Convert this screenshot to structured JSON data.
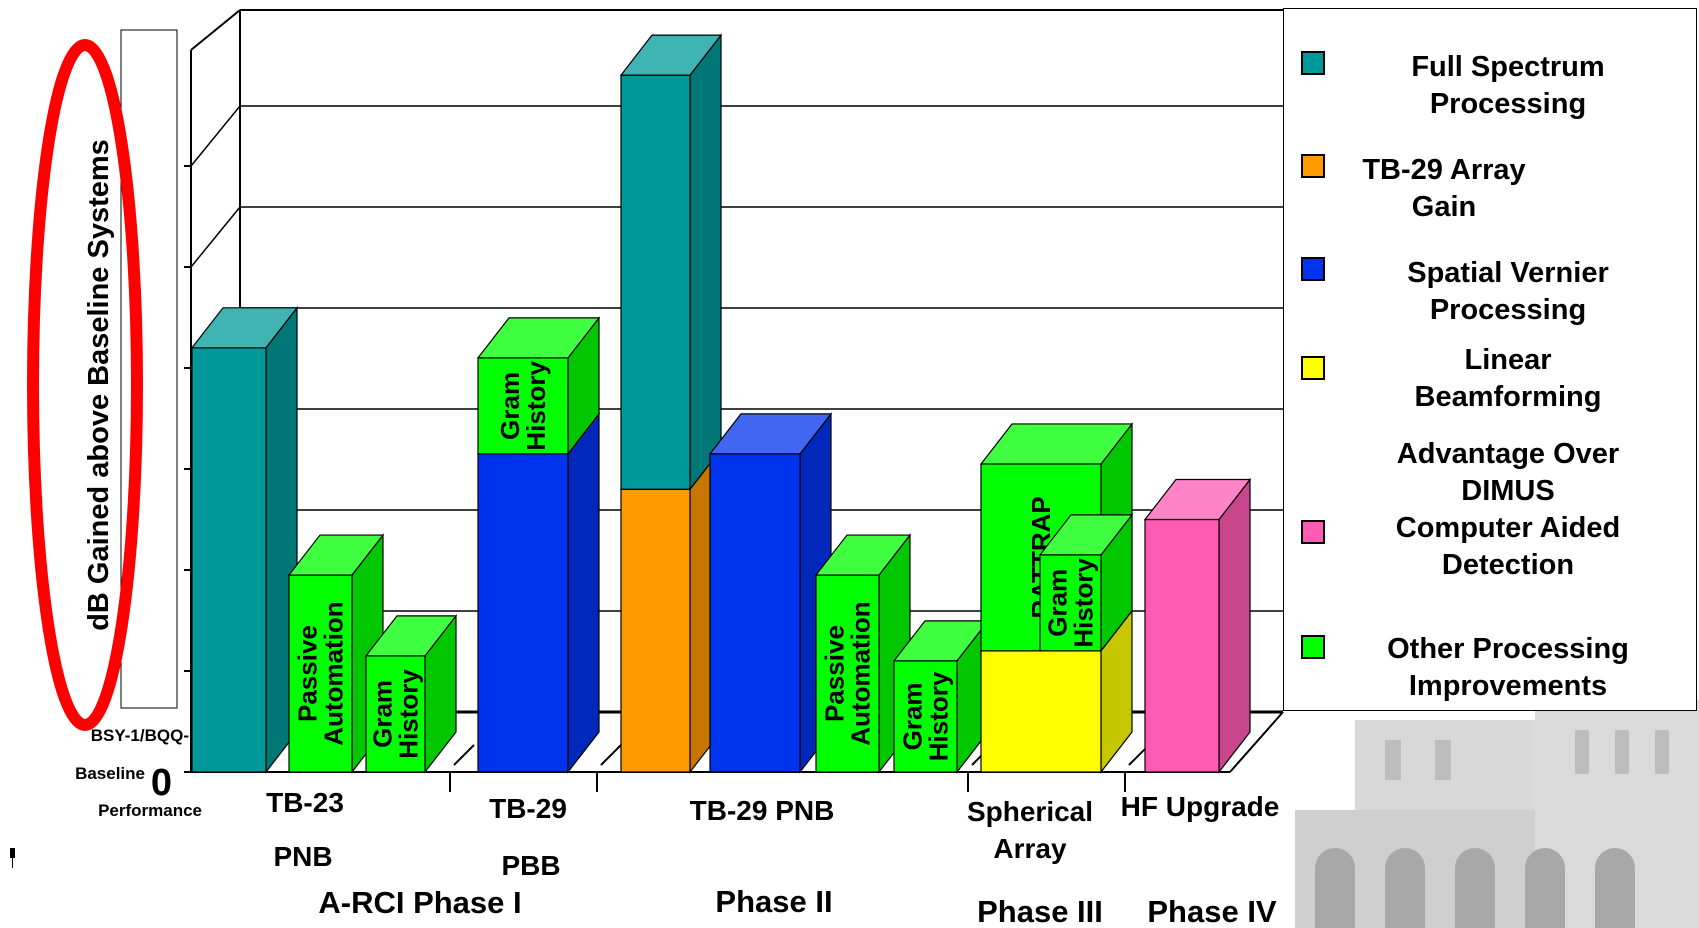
{
  "chart_data": {
    "type": "bar",
    "stacked": true,
    "three_d": true,
    "ylabel": "dB Gained above Baseline Systems",
    "y_baseline_label": [
      "BSY-1/BQQ-",
      "Baseline",
      "Performance"
    ],
    "y_zero_label": "0",
    "ylim": [
      0,
      7
    ],
    "grid": true,
    "legend_position": "right",
    "series": [
      {
        "name": "Full Spectrum Processing",
        "color": "#009999"
      },
      {
        "name": "TB-29 Array Gain",
        "color": "#ff9900"
      },
      {
        "name": "Spatial Vernier Processing",
        "color": "#0033ee"
      },
      {
        "name": "Linear Beamforming",
        "color": "#ffff00"
      },
      {
        "name": "Advantage Over DIMUS Computer Aided Detection",
        "color": "#ff5ab4"
      },
      {
        "name": "Other Processing Improvements",
        "color": "#00ff00"
      }
    ],
    "bars": [
      {
        "group": "TB-23 PNB",
        "segments": [
          {
            "series": 0,
            "value": 4.2
          }
        ]
      },
      {
        "group": "TB-23 PNB",
        "segments": [
          {
            "series": 5,
            "value": 1.95,
            "label": "Passive\nAutomation"
          }
        ]
      },
      {
        "group": "TB-23 PNB",
        "segments": [
          {
            "series": 5,
            "value": 1.15,
            "label": "Gram\nHistory"
          }
        ]
      },
      {
        "group": "TB-29 PBB",
        "segments": [
          {
            "series": 2,
            "value": 3.15
          },
          {
            "series": 5,
            "value": 0.95,
            "label": "Gram\nHistory"
          }
        ]
      },
      {
        "group": "TB-29 PNB",
        "segments": [
          {
            "series": 1,
            "value": 2.8
          },
          {
            "series": 0,
            "value": 4.1
          }
        ]
      },
      {
        "group": "TB-29 PNB",
        "segments": [
          {
            "series": 2,
            "value": 3.15
          }
        ]
      },
      {
        "group": "TB-29 PNB",
        "segments": [
          {
            "series": 5,
            "value": 1.95,
            "label": "Passive\nAutomation"
          }
        ]
      },
      {
        "group": "TB-29 PNB",
        "segments": [
          {
            "series": 5,
            "value": 1.1,
            "label": "Gram\nHistory"
          }
        ]
      },
      {
        "group": "Spherical Array",
        "segments": [
          {
            "series": 3,
            "value": 1.2
          },
          {
            "series": 5,
            "value": 1.85,
            "label": "RATTRAP"
          }
        ]
      },
      {
        "group": "Spherical Array",
        "segments": [
          {
            "series": 5,
            "value": 0.95,
            "label": "Gram\nHistory"
          }
        ]
      },
      {
        "group": "HF Upgrade",
        "segments": [
          {
            "series": 4,
            "value": 2.5
          }
        ]
      }
    ],
    "category_labels": [
      {
        "line1": "TB-23",
        "line2": "PNB"
      },
      {
        "line1": "TB-29",
        "line2": "PBB"
      },
      {
        "line1": "TB-29 PNB",
        "line2": ""
      },
      {
        "line1": "Spherical",
        "line2": "Array"
      },
      {
        "line1": "HF Upgrade",
        "line2": ""
      }
    ],
    "phase_labels": [
      "A-RCI Phase I",
      "Phase II",
      "Phase III",
      "Phase IV"
    ]
  },
  "legend": [
    {
      "label": "Full Spectrum\nProcessing",
      "color": "#009999"
    },
    {
      "label": "TB-29 Array\nGain",
      "color": "#ff9900"
    },
    {
      "label": "Spatial Vernier\nProcessing",
      "color": "#0033ee"
    },
    {
      "label": "Linear\nBeamforming",
      "color": "#ffff00"
    },
    {
      "label": "Advantage Over\nDIMUS\nComputer Aided\nDetection",
      "color": "#ff5ab4"
    },
    {
      "label": "Other Processing\nImprovements",
      "color": "#00ff00"
    }
  ],
  "annotation": {
    "type": "ellipse",
    "color": "#ff0000",
    "target": "ylabel"
  }
}
